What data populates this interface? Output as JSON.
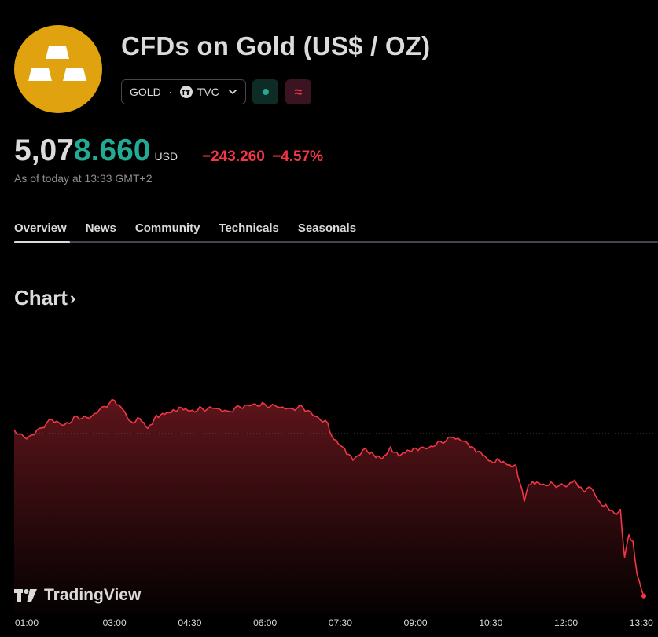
{
  "header": {
    "title": "CFDs on Gold (US$ / OZ)",
    "symbol": "GOLD",
    "separator": "·",
    "exchange": "TVC",
    "delay_glyph": "≈",
    "icons": {
      "logo": "gold-bars-icon",
      "exchange": "tradingview-icon",
      "dropdown": "chevron-down-icon"
    },
    "colors": {
      "logo_bg": "#e0a20f",
      "up": "#22ab94",
      "down": "#f23645"
    }
  },
  "quote": {
    "price_head": "5,07",
    "price_tail": "8.660",
    "currency": "USD",
    "change": "−243.260",
    "change_pct": "−4.57%",
    "as_of": "As of today at 13:33 GMT+2"
  },
  "tabs": [
    "Overview",
    "News",
    "Community",
    "Technicals",
    "Seasonals"
  ],
  "active_tab": "Overview",
  "chart_section": {
    "heading": "Chart",
    "arrow": "›",
    "brand": "TradingView"
  },
  "chart_data": {
    "type": "area",
    "title": "",
    "xlabel": "",
    "ylabel": "",
    "x_ticks": [
      "01:00",
      "03:00",
      "04:30",
      "06:00",
      "07:30",
      "09:00",
      "10:30",
      "12:00",
      "13:30"
    ],
    "xlim": [
      "01:00",
      "13:33"
    ],
    "ylim": [
      5060,
      5400
    ],
    "previous_close": 5321.92,
    "grid": false,
    "series": [
      {
        "color": "#f23645",
        "x": [
          "01:00",
          "01:15",
          "01:30",
          "01:45",
          "02:00",
          "02:15",
          "02:30",
          "02:45",
          "03:00",
          "03:10",
          "03:20",
          "03:30",
          "03:40",
          "03:50",
          "04:00",
          "04:10",
          "04:20",
          "04:30",
          "04:45",
          "05:00",
          "05:15",
          "05:30",
          "05:45",
          "06:00",
          "06:15",
          "06:30",
          "06:45",
          "07:00",
          "07:15",
          "07:20",
          "07:30",
          "07:35",
          "07:45",
          "08:00",
          "08:10",
          "08:20",
          "08:30",
          "08:40",
          "08:50",
          "09:00",
          "09:15",
          "09:30",
          "09:45",
          "10:00",
          "10:10",
          "10:20",
          "10:30",
          "10:40",
          "10:50",
          "11:00",
          "11:10",
          "11:15",
          "11:20",
          "11:30",
          "11:45",
          "12:00",
          "12:10",
          "12:20",
          "12:30",
          "12:40",
          "12:50",
          "13:00",
          "13:05",
          "13:10",
          "13:15",
          "13:20",
          "13:25",
          "13:33"
        ],
        "values": [
          5328,
          5314,
          5330,
          5343,
          5335,
          5348,
          5345,
          5362,
          5372,
          5358,
          5340,
          5345,
          5330,
          5350,
          5351,
          5358,
          5361,
          5356,
          5360,
          5360,
          5356,
          5362,
          5366,
          5366,
          5362,
          5360,
          5362,
          5348,
          5338,
          5318,
          5304,
          5300,
          5282,
          5300,
          5290,
          5284,
          5302,
          5288,
          5297,
          5300,
          5300,
          5310,
          5316,
          5310,
          5300,
          5290,
          5281,
          5282,
          5275,
          5275,
          5220,
          5245,
          5250,
          5245,
          5246,
          5242,
          5252,
          5237,
          5240,
          5220,
          5210,
          5200,
          5208,
          5136,
          5170,
          5160,
          5110,
          5078
        ]
      }
    ]
  }
}
